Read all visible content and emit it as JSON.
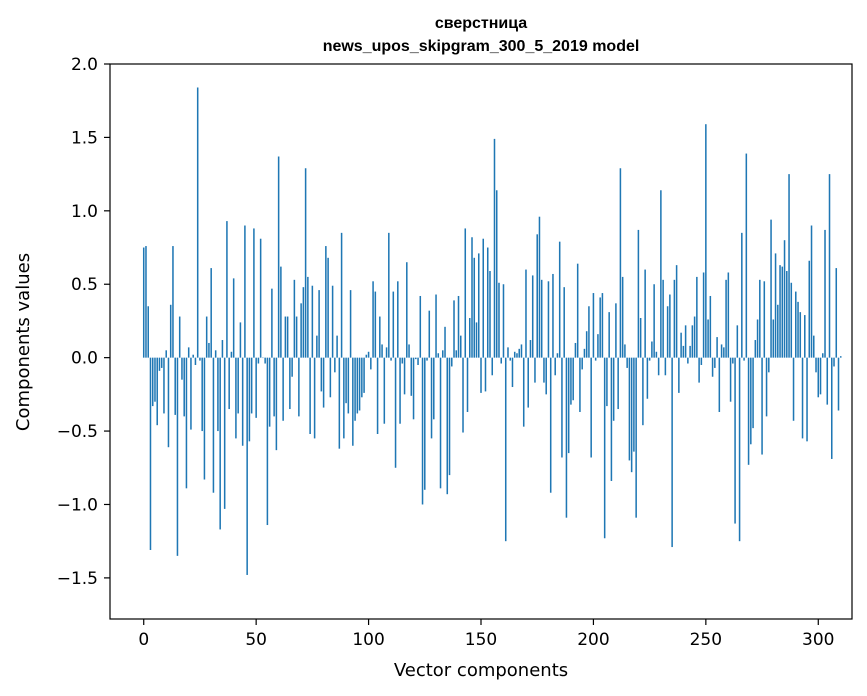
{
  "chart_data": {
    "type": "bar",
    "title": "сверстница",
    "subtitle": "news_upos_skipgram_300_5_2019 model",
    "xlabel": "Vector components",
    "ylabel": "Components values",
    "xlim": [
      -15,
      315
    ],
    "ylim": [
      -1.78,
      2.0
    ],
    "xticks": [
      0,
      50,
      100,
      150,
      200,
      250,
      300
    ],
    "xtick_labels": [
      "0",
      "50",
      "100",
      "150",
      "200",
      "250",
      "300"
    ],
    "yticks": [
      -1.5,
      -1.0,
      -0.5,
      0.0,
      0.5,
      1.0,
      1.5,
      2.0
    ],
    "ytick_labels": [
      "−1.5",
      "−1.0",
      "−0.5",
      "0.0",
      "0.5",
      "1.0",
      "1.5",
      "2.0"
    ],
    "bar_color": "#1f77b4",
    "bar_width": 0.8,
    "values": [
      0.75,
      0.76,
      0.35,
      -1.31,
      -0.33,
      -0.3,
      -0.46,
      -0.09,
      -0.07,
      -0.38,
      0.05,
      -0.61,
      0.36,
      0.76,
      -0.39,
      -1.35,
      0.28,
      -0.15,
      -0.4,
      -0.89,
      0.07,
      -0.49,
      0.02,
      -0.05,
      1.84,
      -0.02,
      -0.5,
      -0.83,
      0.28,
      0.1,
      0.61,
      -0.92,
      0.05,
      -0.5,
      -1.17,
      0.12,
      -1.03,
      0.93,
      -0.35,
      0.04,
      0.54,
      -0.55,
      -0.38,
      0.24,
      -0.6,
      0.9,
      -1.48,
      -0.57,
      -0.38,
      0.88,
      -0.41,
      -0.04,
      0.81,
      0.0,
      -0.04,
      -1.14,
      -0.47,
      0.47,
      -0.4,
      -0.63,
      1.37,
      0.62,
      -0.43,
      0.28,
      0.28,
      -0.35,
      -0.13,
      0.53,
      0.28,
      -0.4,
      0.37,
      0.48,
      1.29,
      0.55,
      -0.52,
      0.49,
      -0.55,
      0.15,
      0.46,
      -0.23,
      -0.34,
      0.76,
      0.68,
      -0.27,
      0.49,
      -0.1,
      0.15,
      -0.62,
      0.85,
      -0.55,
      -0.31,
      -0.38,
      0.46,
      -0.6,
      -0.43,
      -0.38,
      -0.36,
      -0.27,
      -0.24,
      0.02,
      0.04,
      -0.08,
      0.52,
      0.45,
      -0.52,
      0.28,
      0.09,
      -0.45,
      0.07,
      0.85,
      -0.02,
      0.45,
      -0.75,
      0.52,
      -0.45,
      -0.04,
      -0.25,
      0.65,
      0.09,
      -0.26,
      -0.42,
      -0.01,
      -0.05,
      0.42,
      -1.0,
      -0.9,
      -0.02,
      0.32,
      -0.55,
      -0.42,
      0.43,
      0.03,
      -0.89,
      0.05,
      0.21,
      -0.93,
      -0.8,
      -0.06,
      0.39,
      0.05,
      0.42,
      0.15,
      -0.51,
      0.88,
      -0.37,
      0.27,
      0.82,
      0.68,
      0.24,
      0.71,
      -0.24,
      0.81,
      -0.23,
      0.75,
      0.59,
      -0.12,
      1.49,
      1.14,
      0.51,
      -0.04,
      0.5,
      -1.25,
      0.07,
      -0.02,
      -0.2,
      0.04,
      0.03,
      0.06,
      0.09,
      -0.47,
      0.6,
      -0.34,
      0.12,
      0.56,
      -0.17,
      0.84,
      0.96,
      0.53,
      -0.17,
      -0.25,
      0.52,
      -0.92,
      0.57,
      -0.12,
      0.03,
      0.79,
      -0.68,
      0.48,
      -1.09,
      -0.65,
      -0.32,
      -0.29,
      0.1,
      0.64,
      -0.37,
      -0.08,
      0.06,
      0.18,
      0.35,
      -0.68,
      0.44,
      -0.02,
      0.16,
      0.41,
      0.44,
      -1.23,
      -0.33,
      0.31,
      -0.84,
      -0.43,
      0.37,
      -0.35,
      1.29,
      0.55,
      0.09,
      -0.07,
      -0.7,
      -0.78,
      -0.64,
      -1.09,
      0.87,
      0.27,
      -0.46,
      0.6,
      -0.28,
      -0.02,
      0.11,
      0.5,
      0.04,
      -0.12,
      1.14,
      0.53,
      -0.12,
      0.35,
      0.43,
      -1.29,
      0.53,
      0.63,
      -0.24,
      0.17,
      0.08,
      0.22,
      -0.04,
      0.08,
      0.22,
      0.28,
      0.55,
      -0.17,
      -0.05,
      0.58,
      1.59,
      0.26,
      0.42,
      -0.13,
      -0.07,
      0.14,
      -0.37,
      0.09,
      0.07,
      0.53,
      0.58,
      -0.3,
      -0.04,
      -1.13,
      0.22,
      -1.25,
      0.85,
      -0.02,
      1.39,
      -0.73,
      -0.59,
      -0.48,
      0.12,
      0.26,
      0.53,
      -0.66,
      0.52,
      -0.4,
      -0.1,
      0.94,
      0.26,
      0.71,
      0.36,
      0.63,
      0.62,
      0.8,
      0.59,
      1.25,
      0.51,
      -0.43,
      0.45,
      0.38,
      0.31,
      -0.55,
      0.29,
      -0.57,
      0.66,
      0.9,
      0.15,
      -0.1,
      -0.27,
      -0.25,
      0.03,
      0.87,
      -0.32,
      1.25,
      -0.69,
      -0.06,
      0.61,
      -0.36,
      0.01
    ]
  }
}
